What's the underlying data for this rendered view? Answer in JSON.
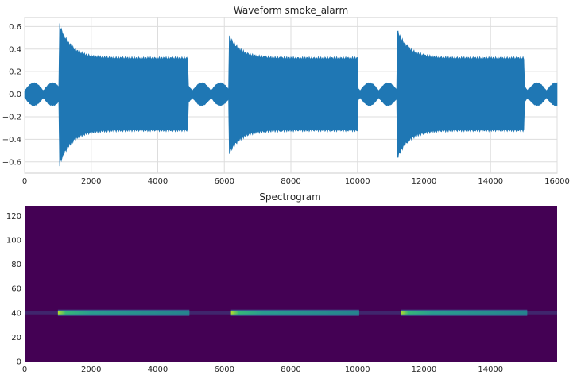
{
  "chart_data": [
    {
      "type": "line",
      "title": "Waveform smoke_alarm",
      "xlabel": "",
      "ylabel": "",
      "xlim": [
        0,
        16000
      ],
      "ylim": [
        -0.7,
        0.68
      ],
      "x_ticks": [
        0,
        2000,
        4000,
        6000,
        8000,
        10000,
        12000,
        14000,
        16000
      ],
      "y_ticks": [
        -0.6,
        -0.4,
        -0.2,
        0.0,
        0.2,
        0.4,
        0.6
      ],
      "x_tick_labels": [
        "0",
        "2000",
        "4000",
        "6000",
        "8000",
        "10000",
        "12000",
        "14000",
        "16000"
      ],
      "y_tick_labels": [
        "−0.6",
        "−0.4",
        "−0.2",
        "0.0",
        "0.2",
        "0.4",
        "0.6"
      ],
      "grid": true,
      "color": "#1f77b4",
      "quiet_amplitude": 0.1,
      "bursts": [
        {
          "start": 1050,
          "end": 4900,
          "peak_pos": 0.61,
          "peak_neg": -0.62,
          "sustain": 0.32
        },
        {
          "start": 6150,
          "end": 10000,
          "peak_pos": 0.51,
          "peak_neg": -0.52,
          "sustain": 0.32
        },
        {
          "start": 11200,
          "end": 15000,
          "peak_pos": 0.56,
          "peak_neg": -0.56,
          "sustain": 0.32
        }
      ]
    },
    {
      "type": "heatmap",
      "title": "Spectrogram",
      "xlabel": "",
      "ylabel": "",
      "xlim": [
        0,
        16000
      ],
      "ylim": [
        0,
        128
      ],
      "x_ticks": [
        0,
        2000,
        4000,
        6000,
        8000,
        10000,
        12000,
        14000
      ],
      "y_ticks": [
        0,
        20,
        40,
        60,
        80,
        100,
        120
      ],
      "x_tick_labels": [
        "0",
        "2000",
        "4000",
        "6000",
        "8000",
        "10000",
        "12000",
        "14000"
      ],
      "y_tick_labels": [
        "0",
        "20",
        "40",
        "60",
        "80",
        "100",
        "120"
      ],
      "colormap": "viridis",
      "background_color": "#440154",
      "band_frequency_bin": 40,
      "bands": [
        {
          "start": 1000,
          "end": 4950
        },
        {
          "start": 6200,
          "end": 10050
        },
        {
          "start": 11300,
          "end": 15100
        }
      ]
    }
  ]
}
